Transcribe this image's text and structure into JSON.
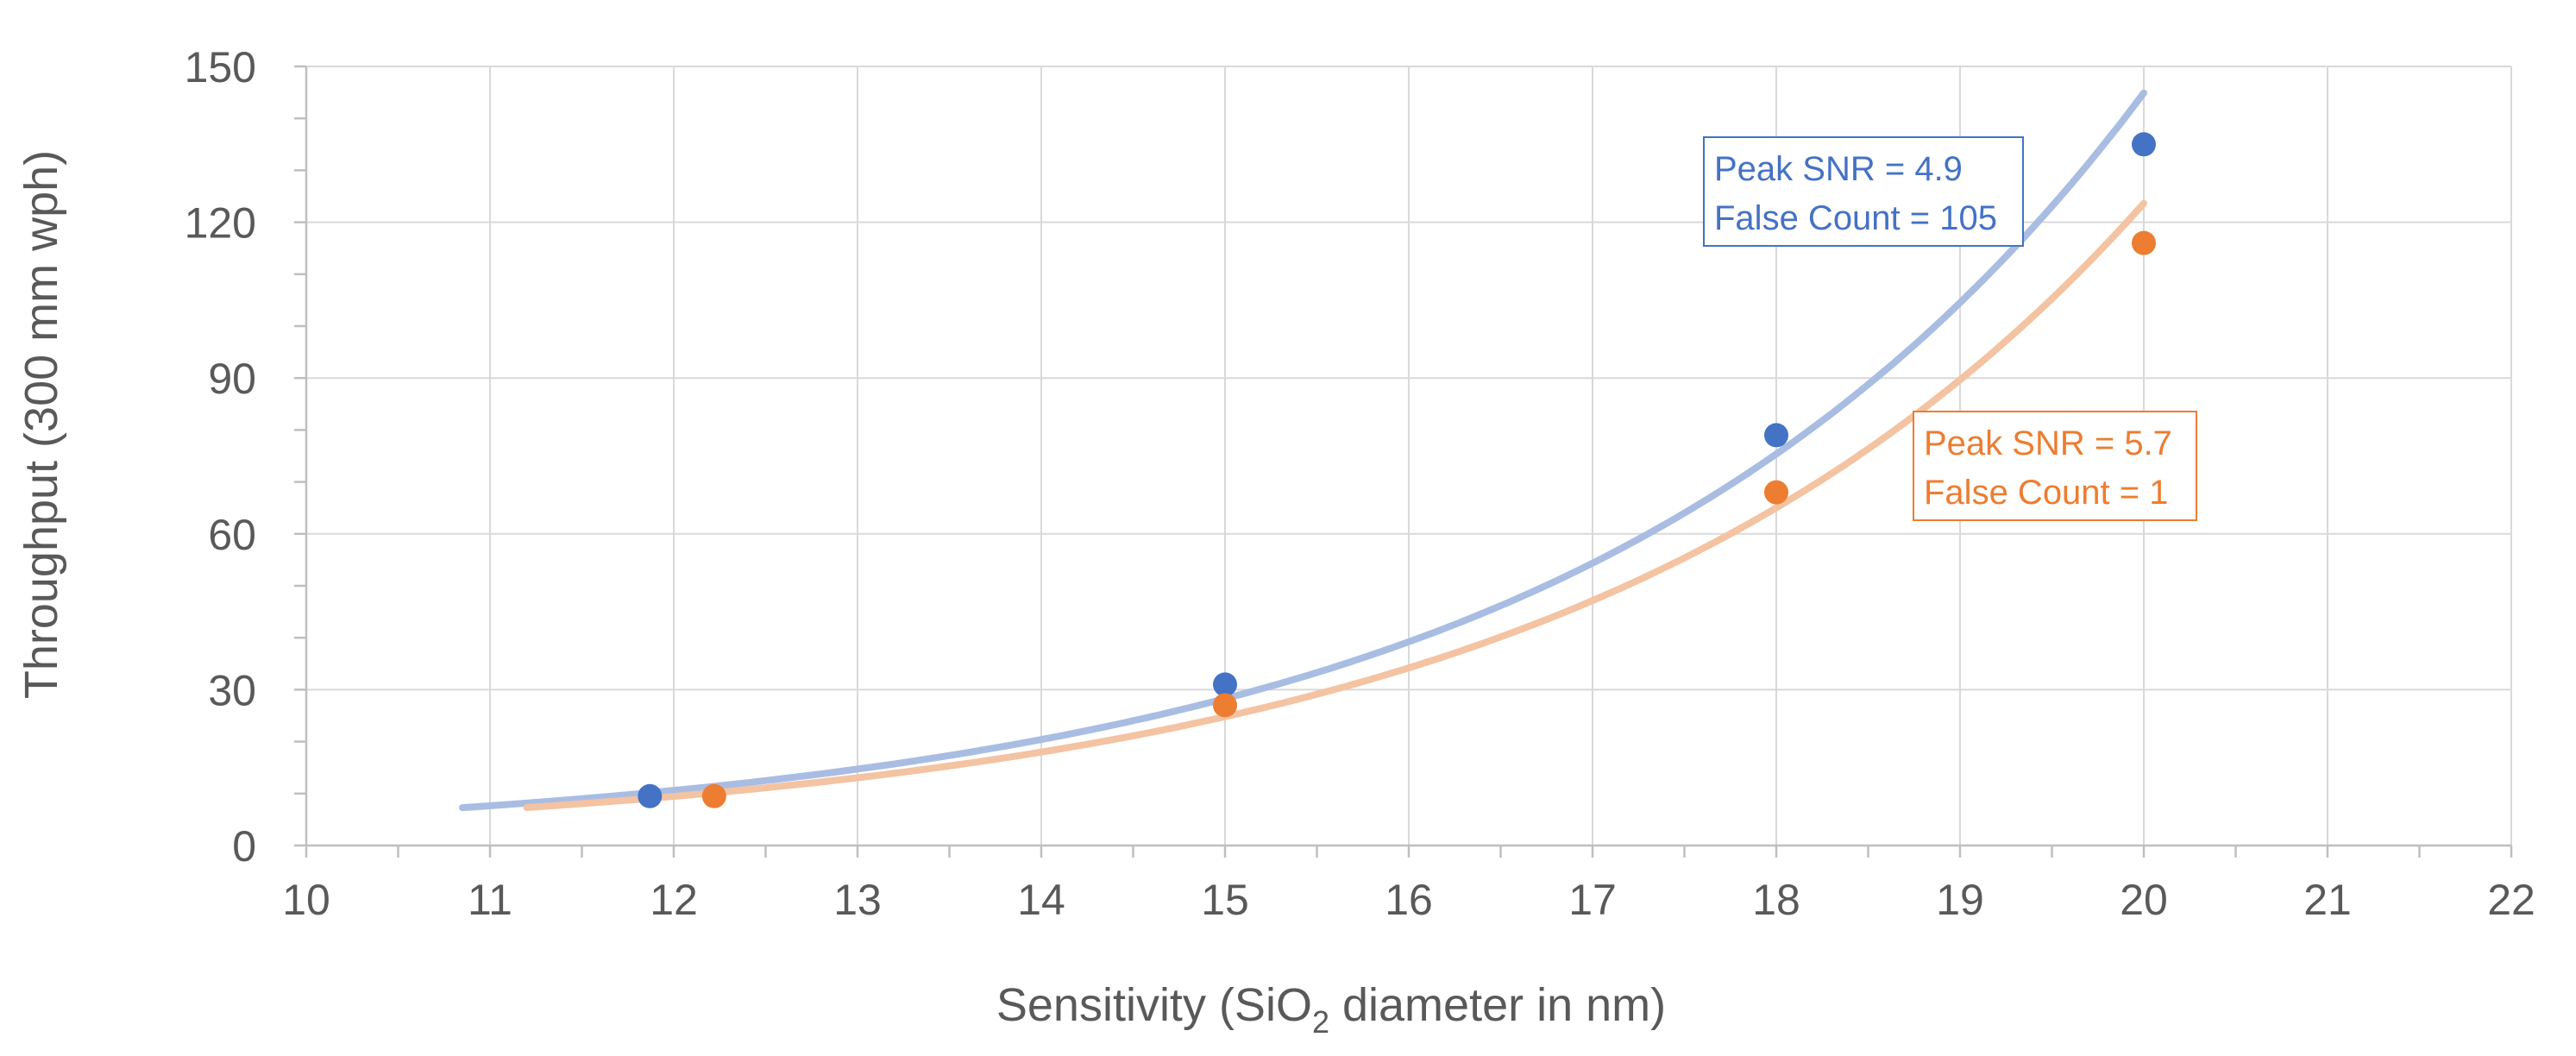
{
  "chart_data": {
    "type": "scatter",
    "title": "",
    "xlabel": {
      "prefix": "Sensitivity (SiO",
      "subscript": "2",
      "suffix": " diameter in nm)"
    },
    "ylabel": "Throughput (300 mm wph)",
    "xlim": [
      10,
      22
    ],
    "ylim": [
      0,
      150
    ],
    "x_major_ticks": [
      10,
      11,
      12,
      13,
      14,
      15,
      16,
      17,
      18,
      19,
      20,
      21,
      22
    ],
    "x_minor_step": 0.5,
    "y_major_ticks": [
      0,
      30,
      60,
      90,
      120,
      150
    ],
    "y_minor_step": 10,
    "grid": true,
    "legend": "none",
    "series": [
      {
        "color": "#4472c4",
        "trend_color": "#a9bde3",
        "points": [
          {
            "x": 11.87,
            "y": 9.5
          },
          {
            "x": 15.0,
            "y": 31.0
          },
          {
            "x": 18.0,
            "y": 79.0
          },
          {
            "x": 20.0,
            "y": 135.0
          }
        ],
        "trendline": {
          "type": "exponential",
          "x_range": [
            10.85,
            20.0
          ]
        },
        "annotation": {
          "lines": [
            "Peak SNR = 4.9",
            "False Count = 105"
          ]
        }
      },
      {
        "color": "#ed7d31",
        "trend_color": "#f3c3a2",
        "points": [
          {
            "x": 12.22,
            "y": 9.5
          },
          {
            "x": 15.0,
            "y": 27.0
          },
          {
            "x": 18.0,
            "y": 68.0
          },
          {
            "x": 20.0,
            "y": 116.0
          }
        ],
        "trendline": {
          "type": "exponential",
          "x_range": [
            11.2,
            20.0
          ]
        },
        "annotation": {
          "lines": [
            "Peak SNR = 5.7",
            "False Count = 1"
          ]
        }
      }
    ]
  }
}
